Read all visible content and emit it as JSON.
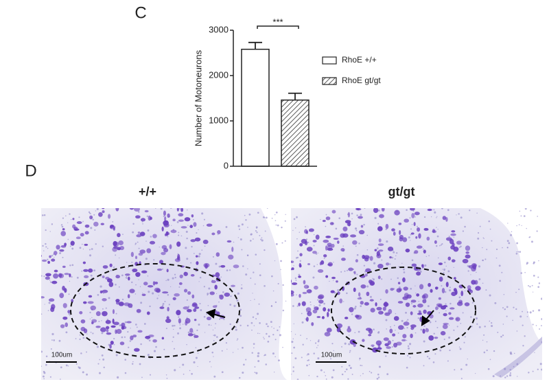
{
  "panels": {
    "c": "C",
    "d": "D"
  },
  "chart_data": {
    "type": "bar",
    "ylabel": "Number of Motoneurons",
    "ylim": [
      0,
      3000
    ],
    "yticks": [
      0,
      1000,
      2000,
      3000
    ],
    "series": [
      {
        "name": "RhoE +/+",
        "color": "#ffffff",
        "values": [
          2580
        ],
        "errors": [
          150
        ]
      },
      {
        "name": "RhoE gt/gt",
        "color": "#ffffff",
        "hatch": true,
        "values": [
          1460
        ],
        "errors": [
          150
        ]
      }
    ],
    "annotation": "***"
  },
  "images": [
    {
      "label": "+/+",
      "scale": "100um"
    },
    {
      "label": "gt/gt",
      "scale": "100um"
    }
  ]
}
